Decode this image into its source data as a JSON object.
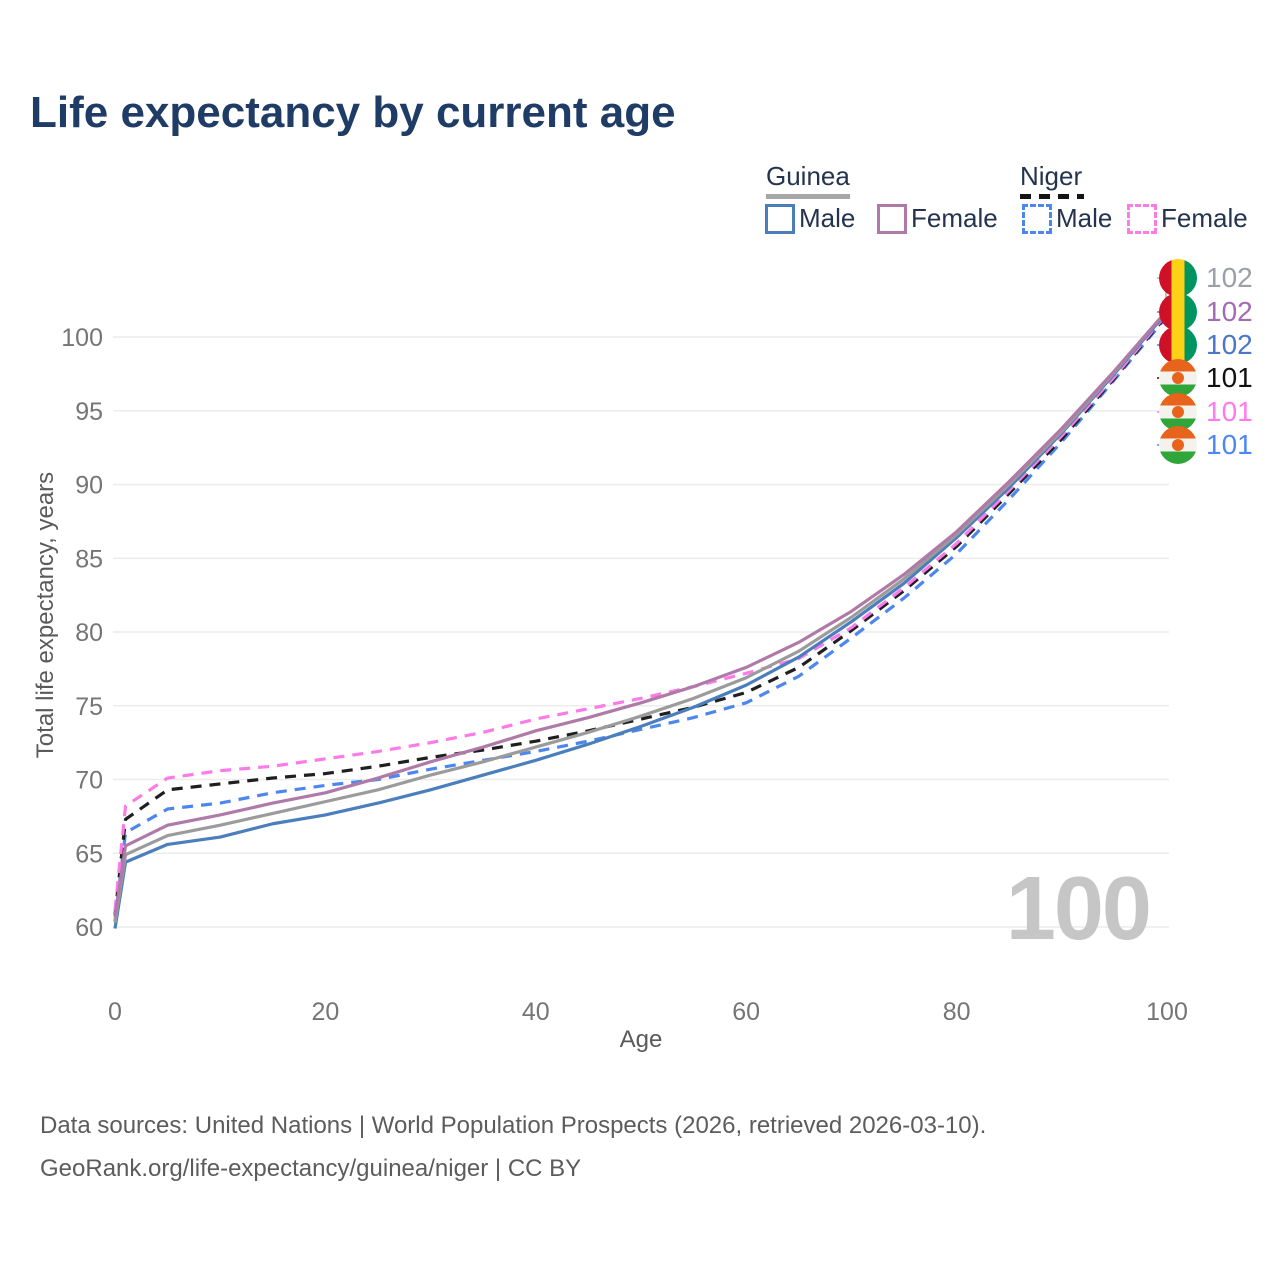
{
  "title": "Life expectancy by current age",
  "legend": {
    "groups": [
      {
        "name": "Guinea",
        "line_style": "solid",
        "items": [
          {
            "label": "Male",
            "color": "#4a7ebc"
          },
          {
            "label": "Female",
            "color": "#b07aa8"
          }
        ]
      },
      {
        "name": "Niger",
        "line_style": "dashed",
        "items": [
          {
            "label": "Male",
            "color": "#4d87ee"
          },
          {
            "label": "Female",
            "color": "#fb7ce8"
          }
        ]
      }
    ]
  },
  "watermark_age": "100",
  "end_labels": [
    {
      "flag": "guinea",
      "value": "102",
      "color": "#9aa0a6"
    },
    {
      "flag": "guinea",
      "value": "102",
      "color": "#a36bb5"
    },
    {
      "flag": "guinea",
      "value": "102",
      "color": "#4a77c9"
    },
    {
      "flag": "niger",
      "value": "101",
      "color": "#111111"
    },
    {
      "flag": "niger",
      "value": "101",
      "color": "#ff7af0"
    },
    {
      "flag": "niger",
      "value": "101",
      "color": "#4d87f5"
    }
  ],
  "footer": {
    "line1": "Data sources: United Nations | World Population Prospects (2026, retrieved 2026-03-10).",
    "line2": "GeoRank.org/life-expectancy/guinea/niger | CC BY"
  },
  "chart_data": {
    "type": "line",
    "title": "Life expectancy by current age",
    "xlabel": "Age",
    "ylabel": "Total life expectancy, years",
    "xlim": [
      0,
      100
    ],
    "ylim": [
      60,
      100
    ],
    "x_ticks": [
      0,
      20,
      40,
      60,
      80,
      100
    ],
    "y_ticks": [
      60,
      65,
      70,
      75,
      80,
      85,
      90,
      95,
      100
    ],
    "grid": "horizontal",
    "legend_position": "top-right",
    "current_age_marker": 100,
    "ages": [
      0,
      1,
      5,
      10,
      15,
      20,
      25,
      30,
      35,
      40,
      45,
      50,
      55,
      60,
      65,
      70,
      75,
      80,
      85,
      90,
      95,
      100
    ],
    "series": [
      {
        "name": "Niger Male",
        "color": "#4d87ee",
        "dash": true,
        "values": [
          60.4,
          66.4,
          68.0,
          68.4,
          69.1,
          69.6,
          70.0,
          70.7,
          71.3,
          71.9,
          72.6,
          73.4,
          74.2,
          75.2,
          77.0,
          79.6,
          82.3,
          85.3,
          89.0,
          92.9,
          97.1,
          101.4
        ]
      },
      {
        "name": "Niger",
        "color": "#1f1f1f",
        "dash": true,
        "values": [
          60.8,
          67.3,
          69.3,
          69.7,
          70.1,
          70.4,
          70.9,
          71.5,
          72.0,
          72.6,
          73.3,
          74.1,
          74.9,
          75.9,
          77.6,
          80.1,
          82.8,
          85.8,
          89.4,
          93.1,
          97.2,
          101.5
        ]
      },
      {
        "name": "Niger Female",
        "color": "#fb7ce8",
        "dash": true,
        "values": [
          61.1,
          68.2,
          70.1,
          70.6,
          70.9,
          71.4,
          71.9,
          72.5,
          73.2,
          74.1,
          74.8,
          75.5,
          76.3,
          77.2,
          78.2,
          80.3,
          83.0,
          86.0,
          89.6,
          93.3,
          97.3,
          101.6
        ]
      },
      {
        "name": "Guinea Male",
        "color": "#4a7ebc",
        "dash": false,
        "values": [
          59.9,
          64.4,
          65.6,
          66.1,
          67.0,
          67.6,
          68.4,
          69.3,
          70.3,
          71.3,
          72.4,
          73.6,
          74.9,
          76.4,
          78.3,
          80.7,
          83.3,
          86.4,
          89.8,
          93.5,
          97.5,
          101.7
        ]
      },
      {
        "name": "Guinea",
        "color": "#9b9b9b",
        "dash": false,
        "values": [
          60.3,
          64.9,
          66.2,
          66.9,
          67.7,
          68.5,
          69.3,
          70.3,
          71.2,
          72.2,
          73.2,
          74.3,
          75.5,
          76.9,
          78.7,
          81.0,
          83.6,
          86.6,
          90.0,
          93.6,
          97.6,
          101.8
        ]
      },
      {
        "name": "Guinea Female",
        "color": "#b07aa8",
        "dash": false,
        "values": [
          60.7,
          65.5,
          66.9,
          67.6,
          68.4,
          69.1,
          70.1,
          71.2,
          72.2,
          73.3,
          74.2,
          75.2,
          76.3,
          77.6,
          79.3,
          81.4,
          83.9,
          86.8,
          90.2,
          93.8,
          97.7,
          101.8
        ]
      }
    ]
  }
}
